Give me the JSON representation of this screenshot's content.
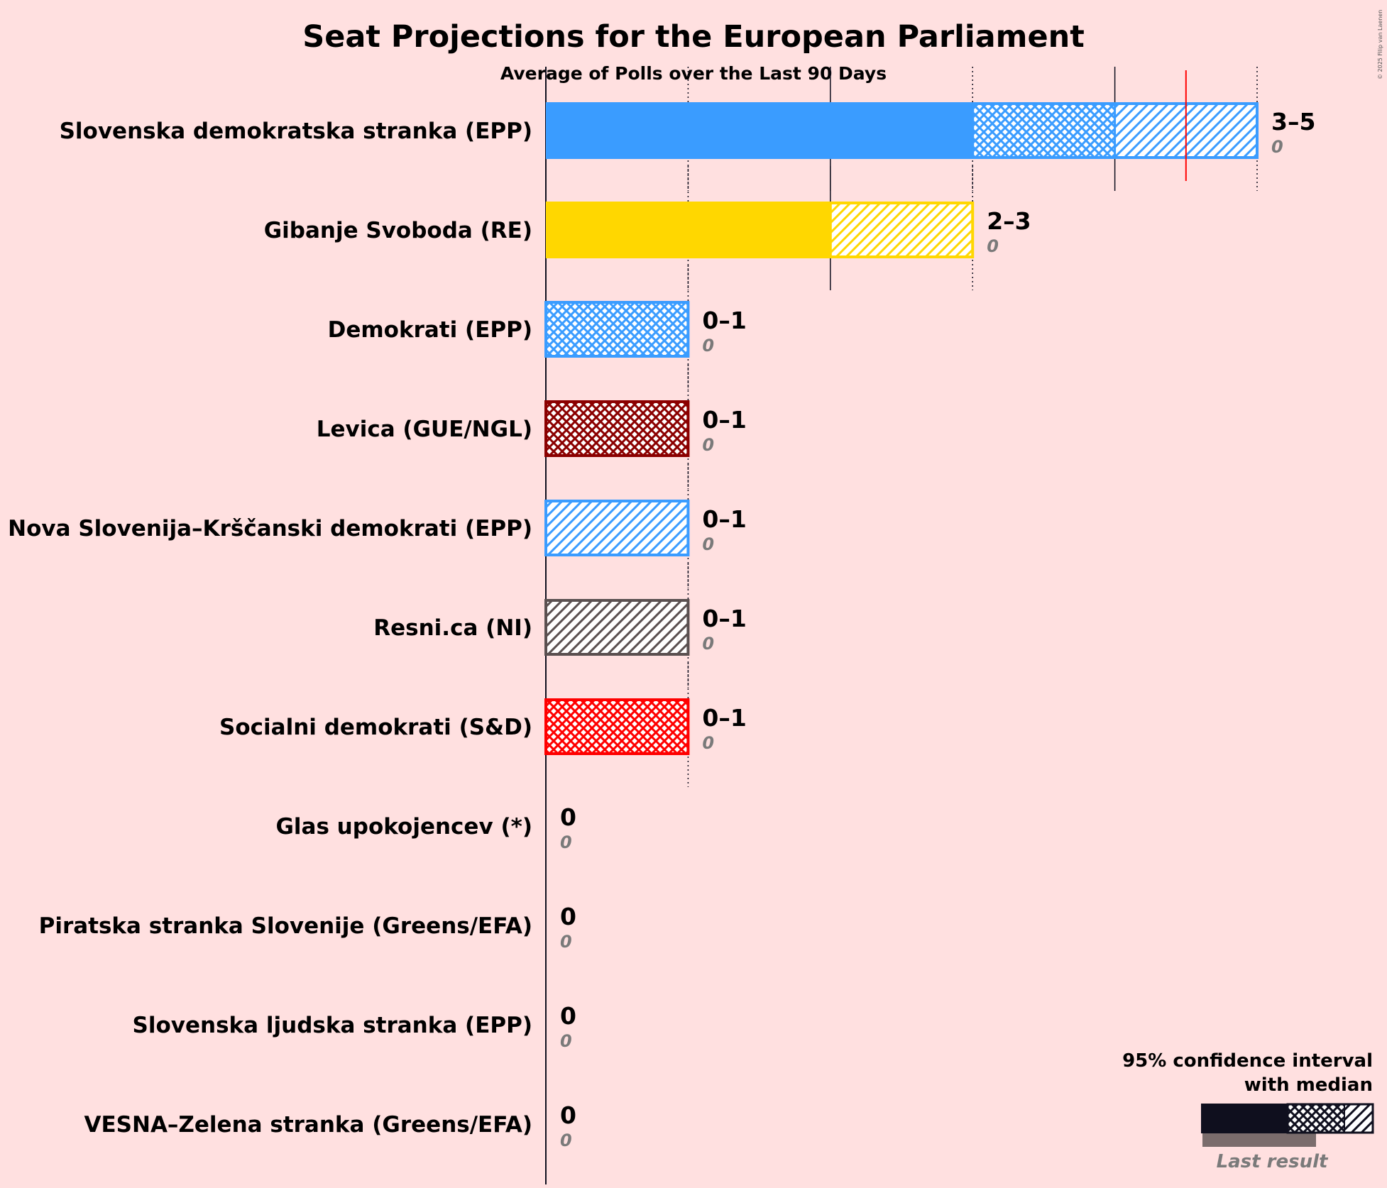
{
  "chart_data": {
    "type": "bar",
    "orientation": "horizontal",
    "title": "Seat Projections for the European Parliament",
    "subtitle": "Average of Polls over the Last 90 Days",
    "copyright": "© 2025 Filip van Laenen",
    "xlim": [
      0,
      5
    ],
    "majority_line": 4.5,
    "majority_color": "#ff0000",
    "parties": [
      {
        "name": "Slovenska demokratska stranka (EPP)",
        "color": "#3a9cff",
        "solid": 3,
        "low": 3,
        "median": 4,
        "high": 5,
        "range_label": "3–5",
        "last_result": "0"
      },
      {
        "name": "Gibanje Svoboda (RE)",
        "color": "#ffd700",
        "solid": 2,
        "low": 2,
        "median": 2,
        "high": 3,
        "range_label": "2–3",
        "last_result": "0"
      },
      {
        "name": "Demokrati (EPP)",
        "color": "#3a9cff",
        "solid": 0,
        "low": 0,
        "median": 1,
        "high": 1,
        "range_label": "0–1",
        "last_result": "0"
      },
      {
        "name": "Levica (GUE/NGL)",
        "color": "#8b0000",
        "solid": 0,
        "low": 0,
        "median": 1,
        "high": 1,
        "range_label": "0–1",
        "last_result": "0"
      },
      {
        "name": "Nova Slovenija–Krščanski demokrati (EPP)",
        "color": "#3a9cff",
        "solid": 0,
        "low": 0,
        "median": 0,
        "high": 1,
        "range_label": "0–1",
        "last_result": "0"
      },
      {
        "name": "Resni.ca (NI)",
        "color": "#5a5050",
        "solid": 0,
        "low": 0,
        "median": 0,
        "high": 1,
        "range_label": "0–1",
        "last_result": "0"
      },
      {
        "name": "Socialni demokrati (S&D)",
        "color": "#ff0000",
        "solid": 0,
        "low": 0,
        "median": 1,
        "high": 1,
        "range_label": "0–1",
        "last_result": "0"
      },
      {
        "name": "Glas upokojencev (*)",
        "color": "#888888",
        "solid": 0,
        "low": 0,
        "median": 0,
        "high": 0,
        "range_label": "0",
        "last_result": "0"
      },
      {
        "name": "Piratska stranka Slovenije (Greens/EFA)",
        "color": "#888888",
        "solid": 0,
        "low": 0,
        "median": 0,
        "high": 0,
        "range_label": "0",
        "last_result": "0"
      },
      {
        "name": "Slovenska ljudska stranka (EPP)",
        "color": "#888888",
        "solid": 0,
        "low": 0,
        "median": 0,
        "high": 0,
        "range_label": "0",
        "last_result": "0"
      },
      {
        "name": "VESNA–Zelena stranka (Greens/EFA)",
        "color": "#888888",
        "solid": 0,
        "low": 0,
        "median": 0,
        "high": 0,
        "range_label": "0",
        "last_result": "0"
      }
    ],
    "legend": {
      "line1": "95% confidence interval",
      "line2": "with median",
      "last_result_label": "Last result",
      "placement": "bottom-right"
    }
  }
}
